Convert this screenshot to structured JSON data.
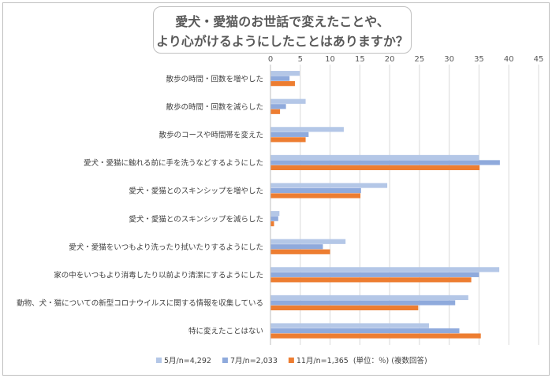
{
  "chart_data": {
    "type": "bar",
    "orientation": "horizontal",
    "title_lines": [
      "愛犬・愛猫のお世話で変えたことや、",
      "より心がけるようにしたことはありますか？"
    ],
    "categories": [
      "散歩の時間・回数を増やした",
      "散歩の時間・回数を減らした",
      "散歩のコースや時間帯を変えた",
      "愛犬・愛猫に触れる前に手を洗うなどするようにした",
      "愛犬・愛猫とのスキンシップを増やした",
      "愛犬・愛猫とのスキンシップを減らした",
      "愛犬・愛猫をいつもより洗ったり拭いたりするようにした",
      "家の中をいつもより消毒したり以前より清潔にするようにした",
      "動物、犬・猫についての新型コロナウイルスに関する情報を収集している",
      "特に変えたことはない"
    ],
    "series": [
      {
        "name": "5月/n=4,292",
        "color": "#b4c7e7",
        "values": [
          4.9,
          5.9,
          12.3,
          35.0,
          19.6,
          1.5,
          12.6,
          38.4,
          33.2,
          26.6
        ]
      },
      {
        "name": "7月/n=2,033",
        "color": "#8faadc",
        "values": [
          3.2,
          2.6,
          6.4,
          38.5,
          15.2,
          1.3,
          8.8,
          35.0,
          31.0,
          31.7
        ]
      },
      {
        "name": "11月/n=1,365",
        "color": "#ed7d31",
        "values": [
          4.1,
          1.6,
          5.9,
          35.1,
          15.1,
          0.6,
          10.0,
          33.7,
          24.8,
          35.3
        ]
      }
    ],
    "xlim": [
      0,
      45
    ],
    "xticks": [
      0,
      5,
      10,
      15,
      20,
      25,
      30,
      35,
      40,
      45
    ],
    "xaxis_position": "top",
    "grid": true,
    "legend_position": "bottom",
    "legend_note": "(単位：％) (複数回答)"
  }
}
